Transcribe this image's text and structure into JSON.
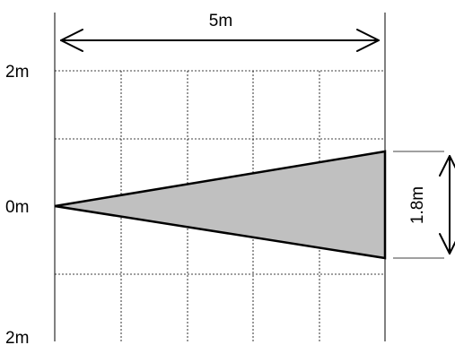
{
  "labels": {
    "width_dim": "5m",
    "height_dim": "1.8m",
    "y_top": "2m",
    "y_mid": "0m",
    "y_bottom": "2m"
  },
  "colors": {
    "wedge_fill": "#c0c0c0",
    "stroke": "#000000",
    "grid": "#000000"
  }
}
